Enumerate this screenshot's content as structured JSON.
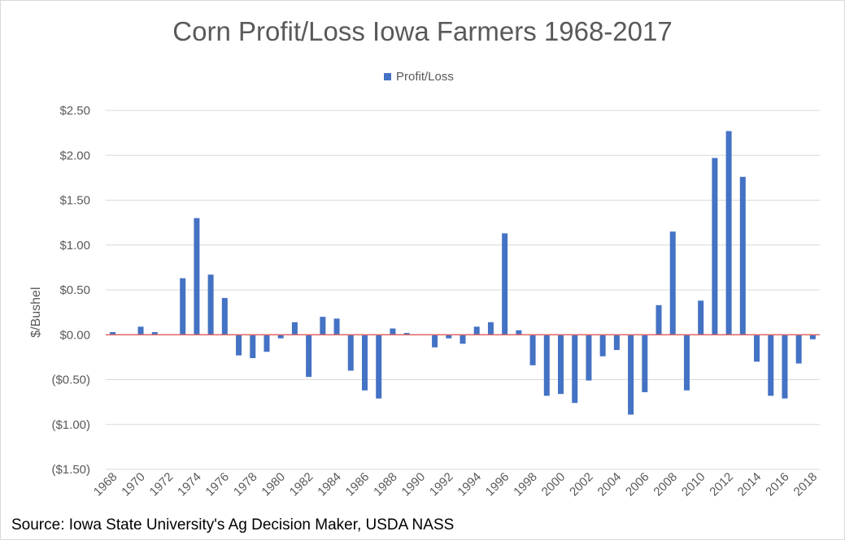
{
  "chart_data": {
    "type": "bar",
    "title": "Corn Profit/Loss Iowa Farmers 1968-2017",
    "ylabel": "$/Bushel",
    "xlabel": "",
    "ylim": [
      -1.5,
      2.5
    ],
    "yticks": [
      2.5,
      2.0,
      1.5,
      1.0,
      0.5,
      0.0,
      -0.5,
      -1.0,
      -1.5
    ],
    "ytick_labels": [
      "$2.50",
      "$2.00",
      "$1.50",
      "$1.00",
      "$0.50",
      "$0.00",
      "($0.50)",
      "($1.00)",
      "($1.50)"
    ],
    "xtick_labels": [
      "1968",
      "1970",
      "1972",
      "1974",
      "1976",
      "1978",
      "1980",
      "1982",
      "1984",
      "1986",
      "1988",
      "1990",
      "1992",
      "1994",
      "1996",
      "1998",
      "2000",
      "2002",
      "2004",
      "2006",
      "2008",
      "2010",
      "2012",
      "2014",
      "2016",
      "2018"
    ],
    "categories": [
      "1968",
      "1969",
      "1970",
      "1971",
      "1972",
      "1973",
      "1974",
      "1975",
      "1976",
      "1977",
      "1978",
      "1979",
      "1980",
      "1981",
      "1982",
      "1983",
      "1984",
      "1985",
      "1986",
      "1987",
      "1988",
      "1989",
      "1990",
      "1991",
      "1992",
      "1993",
      "1994",
      "1995",
      "1996",
      "1997",
      "1998",
      "1999",
      "2000",
      "2001",
      "2002",
      "2003",
      "2004",
      "2005",
      "2006",
      "2007",
      "2008",
      "2009",
      "2010",
      "2011",
      "2012",
      "2013",
      "2014",
      "2015",
      "2016",
      "2017",
      "2018"
    ],
    "series": [
      {
        "name": "Profit/Loss",
        "color": "#4472c4",
        "values": [
          0.03,
          0.0,
          0.09,
          0.03,
          0.0,
          0.63,
          1.3,
          0.67,
          0.41,
          -0.23,
          -0.26,
          -0.19,
          -0.04,
          0.14,
          -0.47,
          0.2,
          0.18,
          -0.4,
          -0.62,
          -0.71,
          0.07,
          0.02,
          0.0,
          -0.14,
          -0.04,
          -0.1,
          0.09,
          0.14,
          1.13,
          0.05,
          -0.34,
          -0.68,
          -0.66,
          -0.76,
          -0.51,
          -0.24,
          -0.17,
          -0.89,
          -0.64,
          0.33,
          1.15,
          -0.62,
          0.38,
          1.97,
          2.27,
          1.76,
          -0.3,
          -0.68,
          -0.71,
          -0.32,
          -0.05
        ]
      }
    ],
    "grid": "horizontal",
    "legend": "top-center",
    "zero_line_color": "#e06666",
    "source": "Source: Iowa State University's Ag Decision Maker, USDA NASS"
  }
}
